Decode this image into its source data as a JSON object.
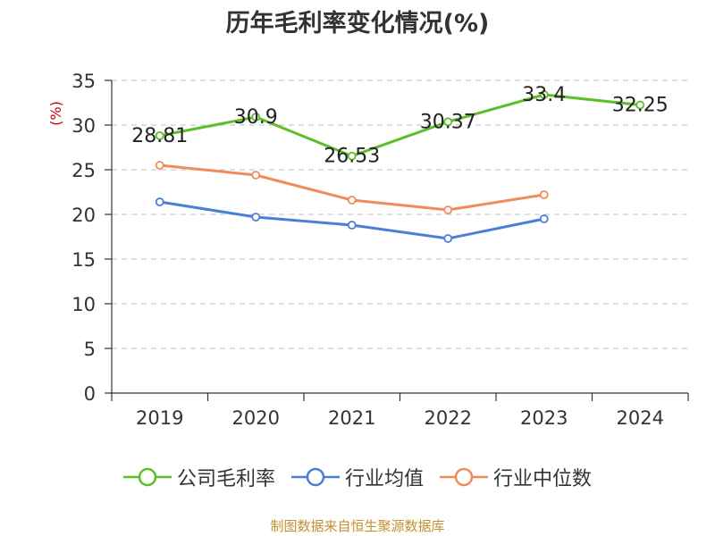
{
  "title": "历年毛利率变化情况(%)",
  "source_note": "制图数据来自恒生聚源数据库",
  "chart_data": {
    "type": "line",
    "title": "历年毛利率变化情况(%)",
    "xlabel": "",
    "ylabel": "(%)",
    "ylim": [
      0,
      35
    ],
    "yticks": [
      0,
      5,
      10,
      15,
      20,
      25,
      30,
      35
    ],
    "categories": [
      "2019",
      "2020",
      "2021",
      "2022",
      "2023",
      "2024"
    ],
    "grid": true,
    "legend_position": "bottom",
    "series": [
      {
        "name": "公司毛利率",
        "color": "#5cbf2a",
        "values": [
          28.81,
          30.9,
          26.53,
          30.37,
          33.4,
          32.25
        ],
        "labels": [
          "28.81",
          "30.9",
          "26.53",
          "30.37",
          "33.4",
          "32.25"
        ]
      },
      {
        "name": "行业均值",
        "color": "#4a7fd8",
        "values": [
          21.4,
          19.7,
          18.8,
          17.3,
          19.5,
          null
        ]
      },
      {
        "name": "行业中位数",
        "color": "#f08c5a",
        "values": [
          25.5,
          24.4,
          21.6,
          20.5,
          22.2,
          null
        ]
      }
    ]
  }
}
